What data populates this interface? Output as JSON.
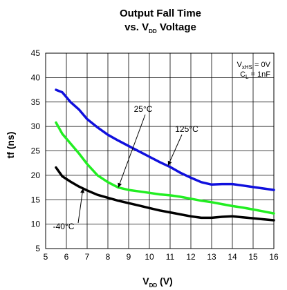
{
  "chart_data": {
    "type": "line",
    "title": {
      "line1": "Output Fall Time",
      "line2_prefix": "vs. V",
      "line2_sub": "DD",
      "line2_suffix": " Voltage"
    },
    "xlabel": {
      "main": "V",
      "sub": "DD",
      "suffix": " (V)"
    },
    "ylabel": "tf (ns)",
    "xlim": [
      5,
      16
    ],
    "ylim": [
      5,
      45
    ],
    "xticks": [
      5,
      6,
      7,
      8,
      9,
      10,
      11,
      12,
      13,
      14,
      15,
      16
    ],
    "yticks": [
      5,
      10,
      15,
      20,
      25,
      30,
      35,
      40,
      45
    ],
    "grid": true,
    "annotation": {
      "line1_main": "V",
      "line1_sub": "xHS",
      "line1_suffix": " = 0V",
      "line2_main": "C",
      "line2_sub": "L",
      "line2_suffix": " = 1nF"
    },
    "series": [
      {
        "name": "125°C",
        "color": "#1010dd",
        "x": [
          5.5,
          5.8,
          6.2,
          6.6,
          7.0,
          7.5,
          8.0,
          8.5,
          9.0,
          9.5,
          10.0,
          10.5,
          11.0,
          11.5,
          12.0,
          12.5,
          13.0,
          13.5,
          14.0,
          14.5,
          15.0,
          15.5,
          16.0
        ],
        "y": [
          37.5,
          37.0,
          35.0,
          33.5,
          31.5,
          29.8,
          28.3,
          27.1,
          26.0,
          24.9,
          23.8,
          22.7,
          21.7,
          20.5,
          19.5,
          18.6,
          18.1,
          18.2,
          18.2,
          17.9,
          17.6,
          17.3,
          17.0
        ]
      },
      {
        "name": "25°C",
        "color": "#22ee22",
        "x": [
          5.5,
          5.8,
          6.2,
          6.6,
          7.0,
          7.5,
          8.0,
          8.5,
          9.0,
          9.5,
          10.0,
          10.5,
          11.0,
          11.5,
          12.0,
          12.5,
          13.0,
          13.5,
          14.0,
          14.5,
          15.0,
          15.5,
          16.0
        ],
        "y": [
          30.8,
          28.5,
          26.5,
          24.5,
          22.3,
          20.0,
          18.6,
          17.5,
          17.0,
          16.7,
          16.4,
          16.1,
          15.9,
          15.6,
          15.2,
          14.8,
          14.5,
          14.1,
          13.7,
          13.4,
          13.0,
          12.6,
          12.2
        ]
      },
      {
        "name": "-40°C",
        "color": "#000000",
        "x": [
          5.5,
          5.8,
          6.2,
          6.6,
          7.0,
          7.5,
          8.0,
          8.5,
          9.0,
          9.5,
          10.0,
          10.5,
          11.0,
          11.5,
          12.0,
          12.5,
          13.0,
          13.5,
          14.0,
          14.5,
          15.0,
          15.5,
          16.0
        ],
        "y": [
          21.6,
          19.8,
          18.7,
          17.7,
          16.9,
          16.0,
          15.4,
          14.8,
          14.3,
          13.8,
          13.3,
          12.8,
          12.4,
          12.0,
          11.6,
          11.3,
          11.3,
          11.5,
          11.6,
          11.4,
          11.2,
          11.0,
          10.8
        ]
      }
    ]
  }
}
